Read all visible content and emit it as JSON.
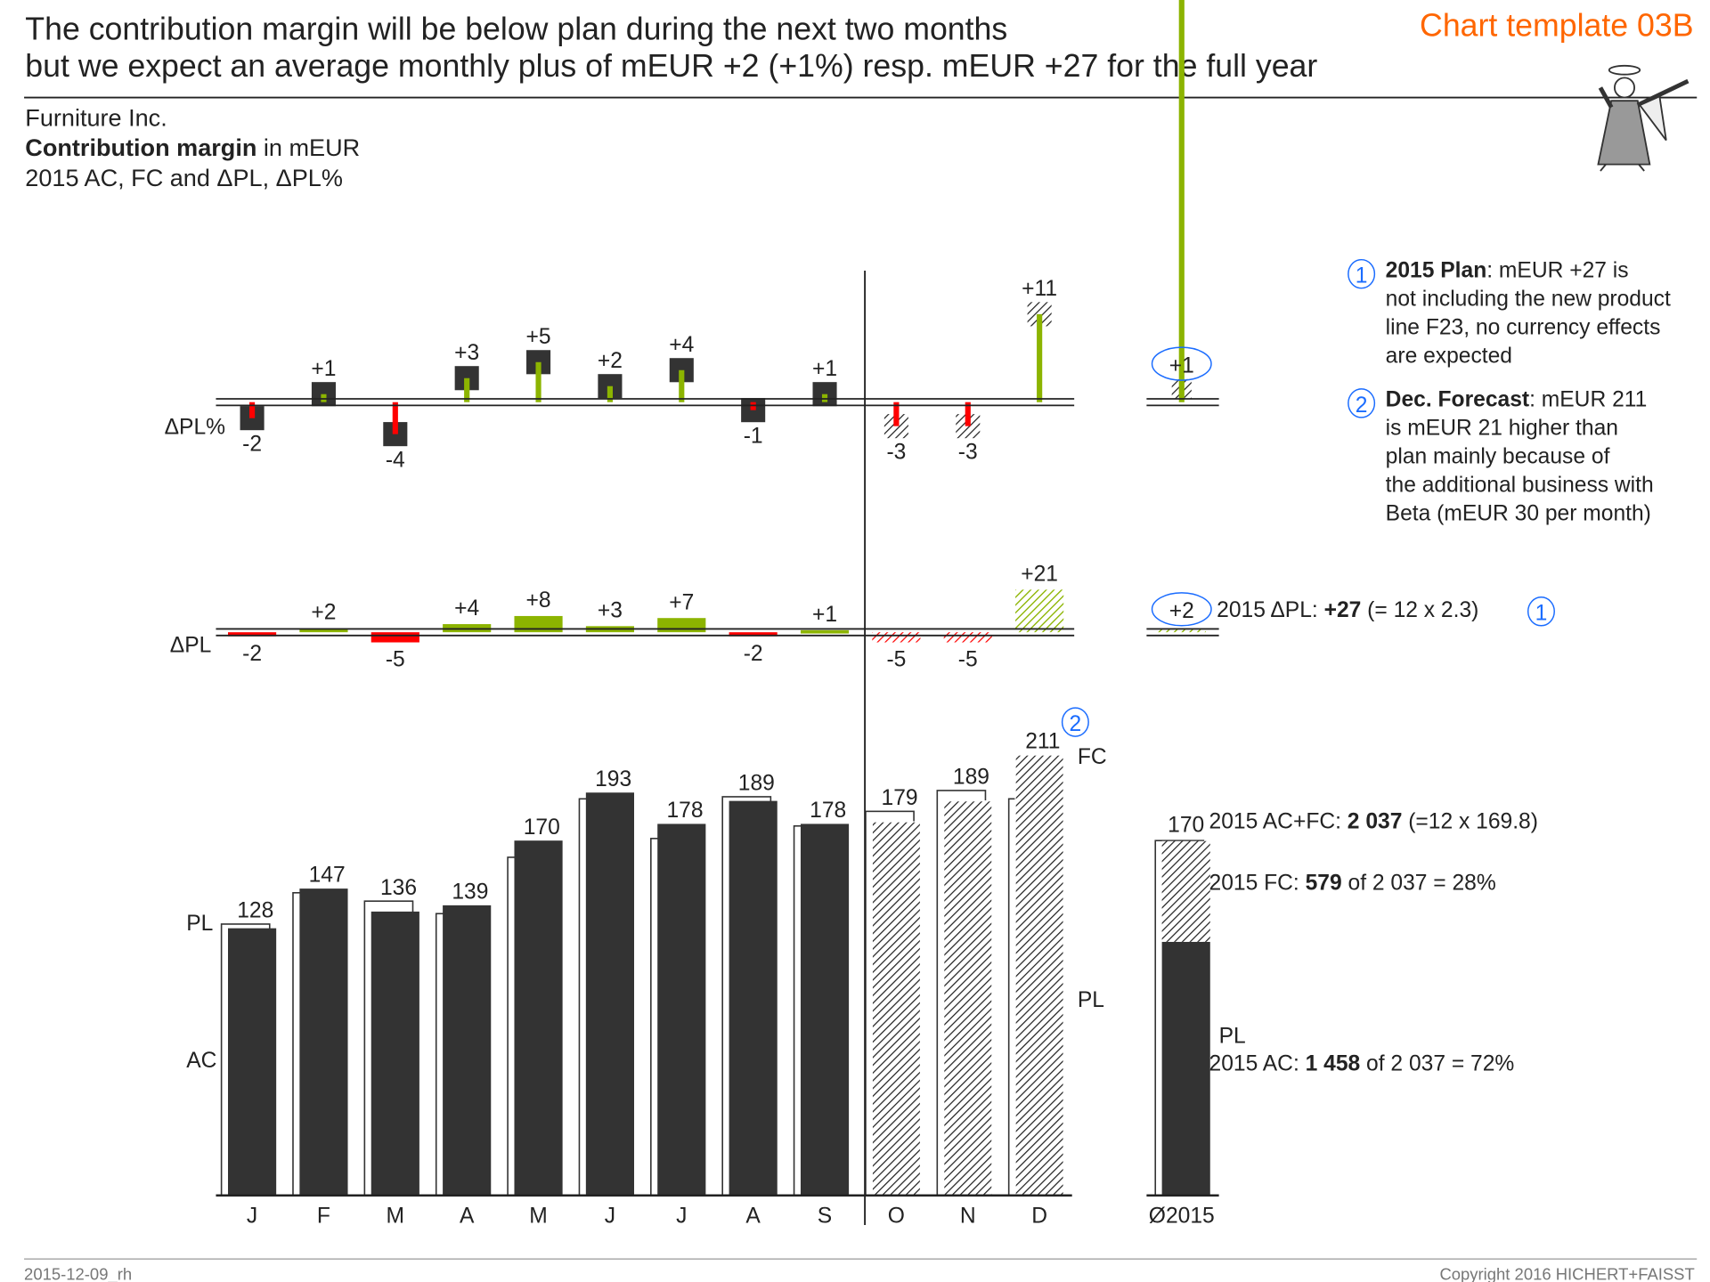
{
  "header": {
    "title_line1": "The contribution margin will be below plan during the next two months",
    "title_line2": "but we expect an average monthly plus of mEUR +2 (+1%) resp. mEUR +27 for the full year",
    "template_label": "Chart template 03B"
  },
  "subtitle": {
    "company": "Furniture Inc.",
    "measure_bold": "Contribution margin",
    "measure_rest": " in mEUR",
    "scenario": "2015 AC, FC and ΔPL, ΔPL%"
  },
  "colors": {
    "positive": "#8cb400",
    "negative": "#ff0000",
    "actual": "#333333",
    "accent": "#ff6600",
    "marker": "#1a6cff"
  },
  "chart_data": {
    "type": "bar",
    "categories": [
      "J",
      "F",
      "M",
      "A",
      "M",
      "J",
      "J",
      "A",
      "S",
      "O",
      "N",
      "D"
    ],
    "scenario": [
      "AC",
      "AC",
      "AC",
      "AC",
      "AC",
      "AC",
      "AC",
      "AC",
      "AC",
      "FC",
      "FC",
      "FC"
    ],
    "series": [
      {
        "name": "AC",
        "values": [
          128,
          147,
          136,
          139,
          170,
          193,
          178,
          189,
          178,
          179,
          189,
          211
        ]
      },
      {
        "name": "PL",
        "values": [
          130,
          145,
          141,
          135,
          162,
          190,
          171,
          191,
          177,
          184,
          194,
          190
        ]
      },
      {
        "name": "ΔPL",
        "values": [
          -2,
          2,
          -5,
          4,
          8,
          3,
          7,
          -2,
          1,
          -5,
          -5,
          21
        ]
      },
      {
        "name": "ΔPL%",
        "values": [
          -2,
          1,
          -4,
          3,
          5,
          2,
          4,
          -1,
          1,
          -3,
          -3,
          11
        ]
      }
    ],
    "average": {
      "category": "Ø2015",
      "value": 170,
      "ac_part": 121.5,
      "fc_part": 48.25,
      "delta_pl": 2,
      "delta_pl_pct": 1
    },
    "row_labels": {
      "delta_pct": "ΔPL%",
      "delta": "ΔPL",
      "pl": "PL",
      "ac": "AC",
      "fc": "FC",
      "pl_right": "PL",
      "pl_avg": "PL"
    },
    "legend": "none",
    "grid": false
  },
  "notes": {
    "marker1": "1",
    "marker2": "2",
    "note1_bold": "2015 Plan",
    "note1_lines": [
      ": mEUR +27 is",
      "not including the new product",
      "line F23, no currency effects",
      "are expected"
    ],
    "note2_bold": "Dec. Forecast",
    "note2_lines": [
      ": mEUR 211",
      "is mEUR 21 higher than",
      "plan mainly because of",
      "the additional business with",
      "Beta (mEUR 30 per month)"
    ],
    "dpl_text_a": "2015 ΔPL:  ",
    "dpl_text_b": "+27",
    "dpl_text_c": " (= 12 x 2.3)",
    "acfc_a": "2015 AC+FC:  ",
    "acfc_b": "2 037",
    "acfc_c": " (=12 x 169.8)",
    "fc_a": "2015 FC:  ",
    "fc_b": "579",
    "fc_c": " of 2 037 = 28%",
    "ac_a": "2015 AC:  ",
    "ac_b": "1 458",
    "ac_c": " of 2 037 = 72%"
  },
  "footer": {
    "left": "2015-12-09_rh",
    "right": "Copyright 2016 HICHERT+FAISST"
  }
}
